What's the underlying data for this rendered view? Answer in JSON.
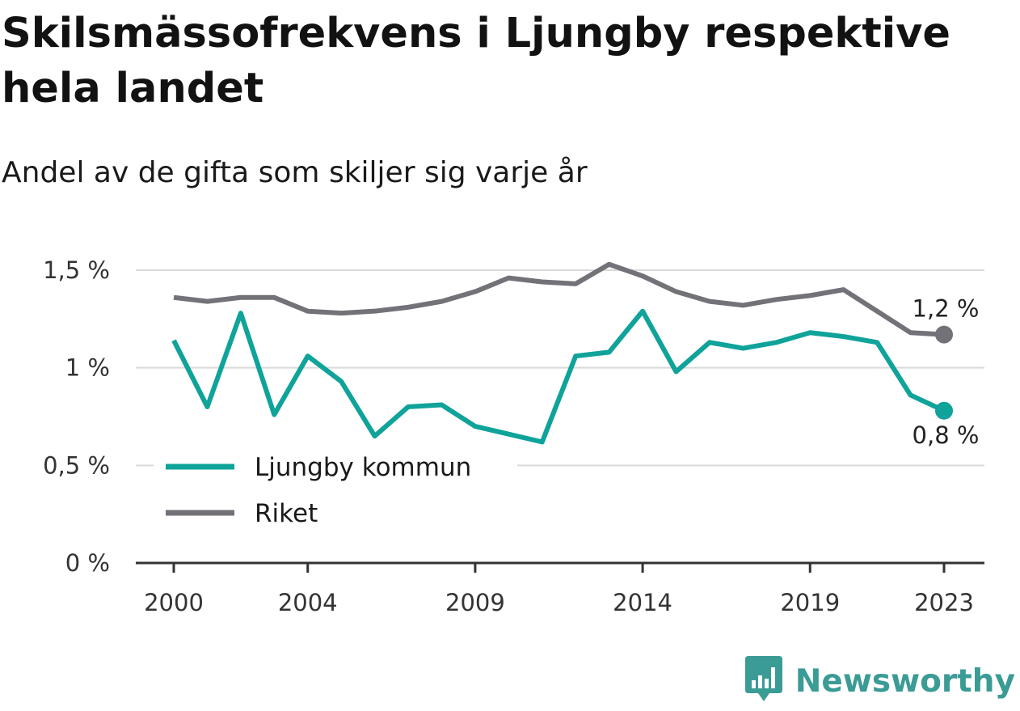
{
  "chart_data": {
    "type": "line",
    "title": "Skilsmässofrekvens i Ljungby respektive hela landet",
    "subtitle": "Andel av de gifta som skiljer sig varje år",
    "x": [
      2000,
      2001,
      2002,
      2003,
      2004,
      2005,
      2006,
      2007,
      2008,
      2009,
      2010,
      2011,
      2012,
      2013,
      2014,
      2015,
      2016,
      2017,
      2018,
      2019,
      2020,
      2021,
      2022,
      2023
    ],
    "x_ticks": [
      2000,
      2004,
      2009,
      2014,
      2019,
      2023
    ],
    "y_ticks": [
      {
        "value": 0,
        "label": "0 %"
      },
      {
        "value": 0.5,
        "label": "0,5 %"
      },
      {
        "value": 1,
        "label": "1 %"
      },
      {
        "value": 1.5,
        "label": "1,5 %"
      }
    ],
    "ylim": [
      0,
      1.5
    ],
    "grid": true,
    "legend_position": "bottom-left",
    "series": [
      {
        "name": "Ljungby kommun",
        "color": "#0fa39a",
        "values": [
          1.14,
          0.8,
          1.28,
          0.76,
          1.06,
          0.93,
          0.65,
          0.8,
          0.81,
          0.7,
          0.66,
          0.62,
          1.06,
          1.08,
          1.29,
          0.98,
          1.13,
          1.1,
          1.13,
          1.18,
          1.16,
          1.13,
          0.86,
          0.78
        ],
        "end_label": "0,8 %"
      },
      {
        "name": "Riket",
        "color": "#737278",
        "values": [
          1.36,
          1.34,
          1.36,
          1.36,
          1.29,
          1.28,
          1.29,
          1.31,
          1.34,
          1.39,
          1.46,
          1.44,
          1.43,
          1.53,
          1.47,
          1.39,
          1.34,
          1.32,
          1.35,
          1.37,
          1.4,
          1.29,
          1.18,
          1.17
        ],
        "end_label": "1,2 %"
      }
    ]
  },
  "brand": {
    "name": "Newsworthy",
    "color": "#3b9b95",
    "icon": "newsworthy-logo-icon"
  }
}
